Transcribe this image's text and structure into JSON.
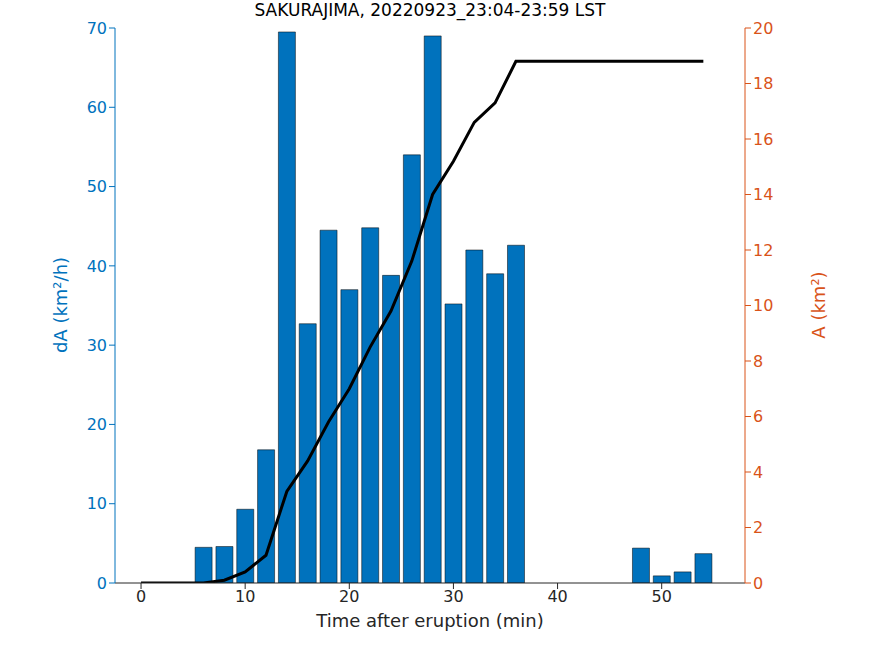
{
  "chart_data": {
    "type": "bar",
    "title": "SAKURAJIMA, 20220923_23:04-23:59 LST",
    "x_label": "Time after eruption (min)",
    "y_label": "dA (km²/h)",
    "y2_label": "A (km²)",
    "x": [
      0,
      2,
      4,
      6,
      8,
      10,
      12,
      14,
      16,
      18,
      20,
      22,
      24,
      26,
      28,
      30,
      32,
      34,
      36,
      38,
      40,
      42,
      44,
      46,
      48,
      50,
      52,
      54
    ],
    "series": [
      {
        "type": "bar",
        "color": "#0072BD",
        "values": [
          0,
          0,
          0,
          4.5,
          4.6,
          9.3,
          16.8,
          69.5,
          32.7,
          44.5,
          37,
          44.8,
          38.8,
          54,
          69,
          35.2,
          42,
          39,
          42.6,
          0,
          0,
          0,
          0,
          0,
          4.4,
          0.9,
          1.4,
          3.7
        ]
      },
      {
        "type": "line",
        "axis": "y2",
        "color": "#000000",
        "values": [
          0,
          0,
          0,
          0,
          0.1,
          0.4,
          1.0,
          3.3,
          4.4,
          5.8,
          7.0,
          8.5,
          9.8,
          11.6,
          14.0,
          15.2,
          16.6,
          17.3,
          18.8,
          18.8,
          18.8,
          18.8,
          18.8,
          18.8,
          18.8,
          18.8,
          18.8,
          18.8
        ]
      }
    ],
    "xlim": [
      -2.5,
      58
    ],
    "xticks": [
      0,
      10,
      20,
      30,
      40,
      50
    ],
    "ylim": [
      0,
      70
    ],
    "yticks": [
      0,
      10,
      20,
      30,
      40,
      50,
      60,
      70
    ],
    "y2lim": [
      0,
      20
    ],
    "y2ticks": [
      0,
      2,
      4,
      6,
      8,
      10,
      12,
      14,
      16,
      18,
      20
    ],
    "grid": false
  }
}
